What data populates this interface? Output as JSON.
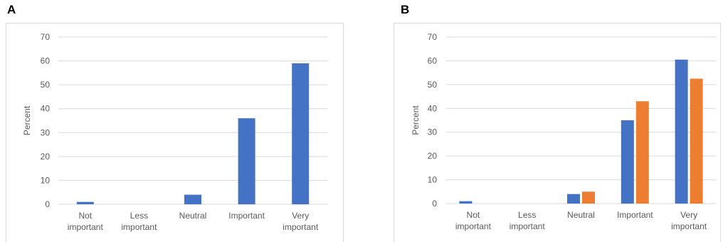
{
  "chart_data": [
    {
      "panel": "A",
      "type": "bar",
      "ylabel": "Percent",
      "xlabel": "",
      "ylim": [
        0,
        70
      ],
      "yticks": [
        0,
        10,
        20,
        30,
        40,
        50,
        60,
        70
      ],
      "categories": [
        [
          "Not",
          "important"
        ],
        [
          "Less",
          "important"
        ],
        [
          "Neutral"
        ],
        [
          "Important"
        ],
        [
          "Very",
          "important"
        ]
      ],
      "series": [
        {
          "values": [
            1,
            0,
            4,
            36,
            59
          ],
          "color": "#4472c4"
        }
      ],
      "grid": true
    },
    {
      "panel": "B",
      "type": "bar",
      "ylabel": "Percent",
      "xlabel": "",
      "ylim": [
        0,
        70
      ],
      "yticks": [
        0,
        10,
        20,
        30,
        40,
        50,
        60,
        70
      ],
      "categories": [
        [
          "Not",
          "important"
        ],
        [
          "Less",
          "important"
        ],
        [
          "Neutral"
        ],
        [
          "Important"
        ],
        [
          "Very",
          "important"
        ]
      ],
      "series": [
        {
          "values": [
            1,
            0,
            4,
            35,
            60.5
          ],
          "color": "#4472c4"
        },
        {
          "values": [
            0,
            0,
            5,
            43,
            52.5
          ],
          "color": "#ed7d31"
        }
      ],
      "grid": true
    }
  ]
}
